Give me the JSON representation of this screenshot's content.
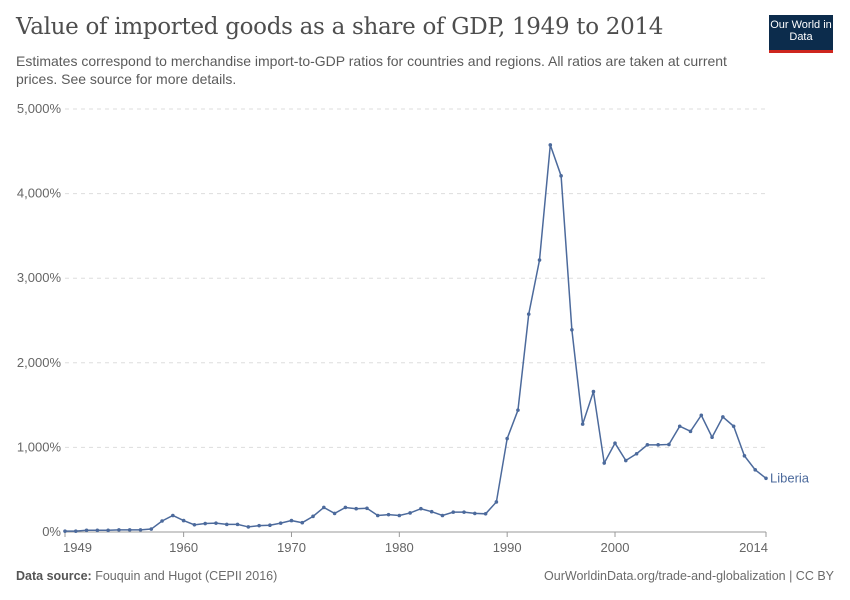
{
  "header": {
    "title": "Value of imported goods as a share of GDP, 1949 to 2014",
    "subtitle": "Estimates correspond to merchandise import-to-GDP ratios for countries and regions. All ratios are taken at current prices. See source for more details.",
    "logo": "Our World in Data"
  },
  "footer": {
    "source_label": "Data source:",
    "source": "Fouquin and Hugot (CEPII 2016)",
    "link": "OurWorldinData.org/trade-and-globalization | CC BY"
  },
  "colors": {
    "series": "#4c6a9c",
    "grid": "#dddddd",
    "axis": "#999999"
  },
  "chart_data": {
    "type": "line",
    "title": "Value of imported goods as a share of GDP, 1949 to 2014",
    "xlim": [
      1949,
      2014
    ],
    "ylim": [
      0,
      5000
    ],
    "x_ticks": [
      "1949",
      "1960",
      "1970",
      "1980",
      "1990",
      "2000",
      "2014"
    ],
    "y_ticks": [
      "0%",
      "1,000%",
      "2,000%",
      "3,000%",
      "4,000%",
      "5,000%"
    ],
    "grid": "horizontal dashed",
    "legend": "inline-end-label",
    "series": [
      {
        "name": "Liberia",
        "x": [
          1949,
          1950,
          1951,
          1952,
          1953,
          1954,
          1955,
          1956,
          1957,
          1958,
          1959,
          1960,
          1961,
          1962,
          1963,
          1964,
          1965,
          1966,
          1967,
          1968,
          1969,
          1970,
          1971,
          1972,
          1973,
          1974,
          1975,
          1976,
          1977,
          1978,
          1979,
          1980,
          1981,
          1982,
          1983,
          1984,
          1985,
          1986,
          1987,
          1988,
          1989,
          1990,
          1991,
          1992,
          1993,
          1994,
          1995,
          1996,
          1997,
          1998,
          1999,
          2000,
          2001,
          2002,
          2003,
          2004,
          2005,
          2006,
          2007,
          2008,
          2009,
          2010,
          2011,
          2012,
          2013,
          2014
        ],
        "values": [
          10,
          10,
          20,
          20,
          20,
          25,
          25,
          25,
          35,
          130,
          195,
          135,
          85,
          100,
          105,
          90,
          90,
          60,
          75,
          80,
          105,
          135,
          110,
          185,
          290,
          220,
          290,
          275,
          280,
          195,
          205,
          195,
          225,
          275,
          240,
          195,
          235,
          235,
          220,
          215,
          355,
          1105,
          1440,
          2575,
          3215,
          4575,
          4210,
          2390,
          1275,
          1660,
          815,
          1050,
          845,
          925,
          1030,
          1030,
          1035,
          1250,
          1190,
          1380,
          1120,
          1360,
          1250,
          900,
          735,
          635
        ]
      }
    ]
  }
}
